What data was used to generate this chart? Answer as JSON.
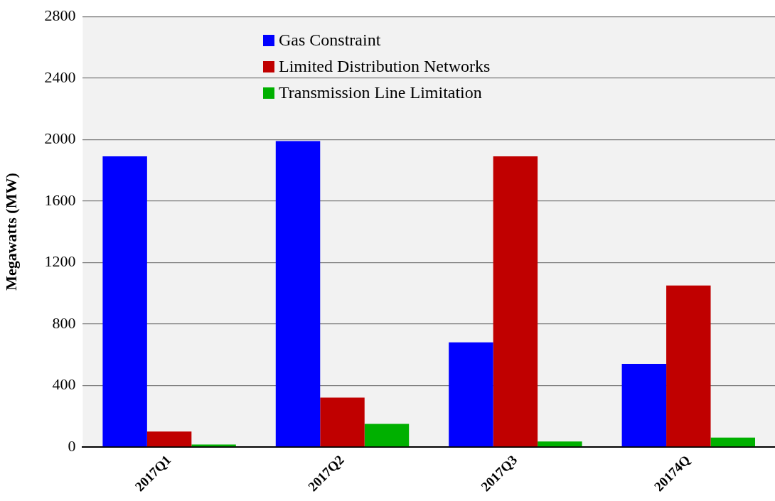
{
  "chart_data": {
    "type": "bar",
    "ylabel": "Megawatts (MW)",
    "categories": [
      "2017Q1",
      "2017Q2",
      "2017Q3",
      "20174Q"
    ],
    "series": [
      {
        "name": "Gas Constraint",
        "color": "#0000ff",
        "values": [
          1890,
          1990,
          680,
          540
        ]
      },
      {
        "name": "Limited Distribution Networks",
        "color": "#c00000",
        "values": [
          100,
          320,
          1890,
          1050
        ]
      },
      {
        "name": "Transmission Line Limitation",
        "color": "#00b000",
        "values": [
          15,
          150,
          35,
          60
        ]
      }
    ],
    "ylim": [
      0,
      2800
    ],
    "yticks": [
      0,
      400,
      800,
      1200,
      1600,
      2000,
      2400,
      2800
    ],
    "grid": "y",
    "legend": "top"
  }
}
